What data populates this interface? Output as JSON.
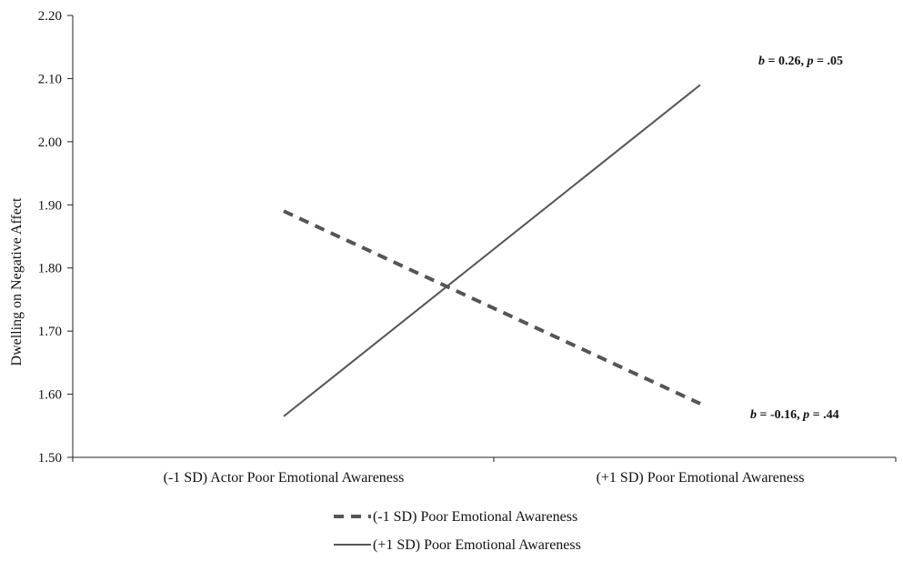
{
  "chart_data": {
    "type": "line",
    "ylabel": "Dwelling on Negative Affect",
    "xlabel": "",
    "ylim": [
      1.5,
      2.2
    ],
    "yticks": [
      "1.50",
      "1.60",
      "1.70",
      "1.80",
      "1.90",
      "2.00",
      "2.10",
      "2.20"
    ],
    "categories": [
      "(-1 SD) Actor Poor Emotional Awareness",
      "(+1 SD) Poor Emotional Awareness"
    ],
    "series": [
      {
        "name": "(-1 SD) Poor Emotional Awareness",
        "values": [
          1.89,
          1.585
        ],
        "style": "dashed",
        "color": "#555555",
        "annotation": {
          "b_label": "b",
          "b_value": " = -0.16, ",
          "p_label": "p",
          "p_value": " = .44"
        }
      },
      {
        "name": "(+1 SD) Poor Emotional Awareness",
        "values": [
          1.565,
          2.09
        ],
        "style": "solid",
        "color": "#555555",
        "annotation": {
          "b_label": "b",
          "b_value": " = 0.26, ",
          "p_label": "p",
          "p_value": " = .05"
        }
      }
    ],
    "grid": false,
    "legend": "bottom-center"
  }
}
